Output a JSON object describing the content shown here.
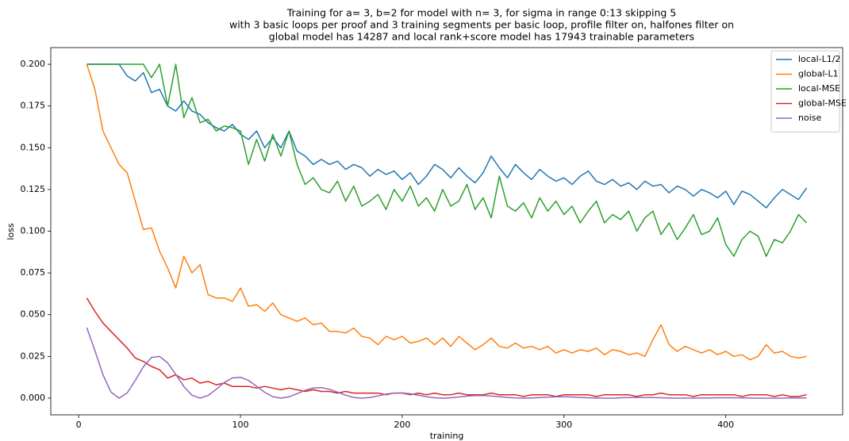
{
  "chart_data": {
    "type": "line",
    "title": [
      "Training for a= 3, b=2 for model with n= 3, for sigma in range 0:13 skipping 5",
      "with 3 basic loops per proof and 3 training segments per basic loop, profile filter on, halfones filter on",
      "global model has 14287 and local rank+score model has 17943 trainable parameters"
    ],
    "xlabel": "training",
    "ylabel": "loss",
    "legend": "upper right",
    "xlim": [
      -17.25,
      472.25
    ],
    "ylim": [
      -0.01,
      0.21
    ],
    "xticks": [
      0,
      100,
      200,
      300,
      400
    ],
    "yticks": [
      {
        "value": 0,
        "label": "0.000"
      },
      {
        "value": 0.025,
        "label": "0.025"
      },
      {
        "value": 0.05,
        "label": "0.050"
      },
      {
        "value": 0.075,
        "label": "0.075"
      },
      {
        "value": 0.1,
        "label": "0.100"
      },
      {
        "value": 0.125,
        "label": "0.125"
      },
      {
        "value": 0.15,
        "label": "0.150"
      },
      {
        "value": 0.175,
        "label": "0.175"
      },
      {
        "value": 0.2,
        "label": "0.200"
      }
    ],
    "x": [
      5,
      10,
      15,
      20,
      25,
      30,
      35,
      40,
      45,
      50,
      55,
      60,
      65,
      70,
      75,
      80,
      85,
      90,
      95,
      100,
      105,
      110,
      115,
      120,
      125,
      130,
      135,
      140,
      145,
      150,
      155,
      160,
      165,
      170,
      175,
      180,
      185,
      190,
      195,
      200,
      205,
      210,
      215,
      220,
      225,
      230,
      235,
      240,
      245,
      250,
      255,
      260,
      265,
      270,
      275,
      280,
      285,
      290,
      295,
      300,
      305,
      310,
      315,
      320,
      325,
      330,
      335,
      340,
      345,
      350,
      355,
      360,
      365,
      370,
      375,
      380,
      385,
      390,
      395,
      400,
      405,
      410,
      415,
      420,
      425,
      430,
      435,
      440,
      445,
      450
    ],
    "series": [
      {
        "name": "local-L1/2",
        "color": "#1f77b4",
        "values": [
          0.2,
          0.2,
          0.2,
          0.2,
          0.2,
          0.193,
          0.19,
          0.195,
          0.183,
          0.185,
          0.175,
          0.172,
          0.178,
          0.172,
          0.17,
          0.165,
          0.162,
          0.16,
          0.164,
          0.158,
          0.155,
          0.16,
          0.15,
          0.156,
          0.15,
          0.16,
          0.148,
          0.145,
          0.14,
          0.143,
          0.14,
          0.142,
          0.137,
          0.14,
          0.138,
          0.133,
          0.137,
          0.134,
          0.136,
          0.131,
          0.135,
          0.128,
          0.133,
          0.14,
          0.137,
          0.132,
          0.138,
          0.133,
          0.129,
          0.135,
          0.145,
          0.138,
          0.132,
          0.14,
          0.135,
          0.131,
          0.137,
          0.133,
          0.13,
          0.132,
          0.128,
          0.133,
          0.136,
          0.13,
          0.128,
          0.131,
          0.127,
          0.129,
          0.125,
          0.13,
          0.127,
          0.128,
          0.123,
          0.127,
          0.125,
          0.121,
          0.125,
          0.123,
          0.12,
          0.124,
          0.116,
          0.124,
          0.122,
          0.118,
          0.114,
          0.12,
          0.125,
          0.122,
          0.119,
          0.126
        ]
      },
      {
        "name": "global-L1",
        "color": "#ff7f0e",
        "values": [
          0.2,
          0.185,
          0.16,
          0.15,
          0.14,
          0.135,
          0.118,
          0.101,
          0.102,
          0.088,
          0.078,
          0.066,
          0.085,
          0.075,
          0.08,
          0.062,
          0.06,
          0.06,
          0.058,
          0.066,
          0.055,
          0.056,
          0.052,
          0.057,
          0.05,
          0.048,
          0.046,
          0.048,
          0.044,
          0.045,
          0.04,
          0.04,
          0.039,
          0.042,
          0.037,
          0.036,
          0.032,
          0.037,
          0.035,
          0.037,
          0.033,
          0.034,
          0.036,
          0.032,
          0.036,
          0.031,
          0.037,
          0.033,
          0.029,
          0.032,
          0.036,
          0.031,
          0.03,
          0.033,
          0.03,
          0.031,
          0.029,
          0.031,
          0.027,
          0.029,
          0.027,
          0.029,
          0.028,
          0.03,
          0.026,
          0.029,
          0.028,
          0.026,
          0.027,
          0.025,
          0.035,
          0.044,
          0.032,
          0.028,
          0.031,
          0.029,
          0.027,
          0.029,
          0.026,
          0.028,
          0.025,
          0.026,
          0.023,
          0.025,
          0.032,
          0.027,
          0.028,
          0.025,
          0.024,
          0.025
        ]
      },
      {
        "name": "local-MSE",
        "color": "#2ca02c",
        "values": [
          0.2,
          0.2,
          0.2,
          0.2,
          0.2,
          0.2,
          0.2,
          0.2,
          0.192,
          0.2,
          0.175,
          0.2,
          0.168,
          0.18,
          0.165,
          0.167,
          0.16,
          0.163,
          0.162,
          0.16,
          0.14,
          0.155,
          0.142,
          0.158,
          0.145,
          0.16,
          0.14,
          0.128,
          0.132,
          0.125,
          0.123,
          0.13,
          0.118,
          0.127,
          0.115,
          0.118,
          0.122,
          0.113,
          0.125,
          0.118,
          0.127,
          0.115,
          0.12,
          0.112,
          0.125,
          0.115,
          0.118,
          0.128,
          0.113,
          0.12,
          0.108,
          0.133,
          0.115,
          0.112,
          0.117,
          0.108,
          0.12,
          0.112,
          0.118,
          0.11,
          0.115,
          0.105,
          0.112,
          0.118,
          0.105,
          0.11,
          0.107,
          0.112,
          0.1,
          0.108,
          0.112,
          0.098,
          0.105,
          0.095,
          0.102,
          0.11,
          0.098,
          0.1,
          0.108,
          0.092,
          0.085,
          0.095,
          0.1,
          0.097,
          0.085,
          0.095,
          0.093,
          0.1,
          0.11,
          0.105
        ]
      },
      {
        "name": "global-MSE",
        "color": "#d62728",
        "values": [
          0.06,
          0.052,
          0.045,
          0.04,
          0.035,
          0.03,
          0.024,
          0.022,
          0.019,
          0.017,
          0.012,
          0.014,
          0.011,
          0.012,
          0.009,
          0.01,
          0.008,
          0.009,
          0.007,
          0.007,
          0.007,
          0.006,
          0.007,
          0.006,
          0.005,
          0.006,
          0.005,
          0.004,
          0.005,
          0.004,
          0.004,
          0.003,
          0.004,
          0.003,
          0.003,
          0.003,
          0.003,
          0.002,
          0.003,
          0.003,
          0.002,
          0.003,
          0.002,
          0.003,
          0.002,
          0.002,
          0.003,
          0.002,
          0.002,
          0.002,
          0.003,
          0.002,
          0.002,
          0.002,
          0.001,
          0.002,
          0.002,
          0.002,
          0.001,
          0.002,
          0.002,
          0.002,
          0.002,
          0.001,
          0.002,
          0.002,
          0.002,
          0.002,
          0.001,
          0.002,
          0.002,
          0.003,
          0.002,
          0.002,
          0.002,
          0.001,
          0.002,
          0.002,
          0.002,
          0.002,
          0.002,
          0.001,
          0.002,
          0.002,
          0.002,
          0.001,
          0.002,
          0.001,
          0.001,
          0.002
        ]
      },
      {
        "name": "noise",
        "color": "#9467bd",
        "values": [
          0.0422,
          0.0285,
          0.014,
          0.0036,
          0,
          0.0031,
          0.0106,
          0.0188,
          0.0243,
          0.025,
          0.0211,
          0.0143,
          0.007,
          0.0018,
          0,
          0.0016,
          0.0053,
          0.0094,
          0.0121,
          0.0125,
          0.0106,
          0.0071,
          0.0035,
          0.0009,
          0,
          0.0008,
          0.0027,
          0.0047,
          0.0061,
          0.0063,
          0.0053,
          0.0036,
          0.0018,
          0.0004,
          0,
          0.0004,
          0.0013,
          0.0024,
          0.003,
          0.0031,
          0.0026,
          0.0018,
          0.0009,
          0.0002,
          0,
          0.0002,
          0.0007,
          0.0012,
          0.0015,
          0.0016,
          0.0013,
          0.0009,
          0.0004,
          0.0001,
          0,
          0.0001,
          0.0003,
          0.0006,
          0.0008,
          0.0008,
          0.0007,
          0.0004,
          0.0002,
          0.0001,
          0,
          0,
          0.0002,
          0.0003,
          0.0004,
          0.0004,
          0.0003,
          0.0002,
          0.0001,
          0,
          0,
          0,
          0.0001,
          0.0001,
          0.0002,
          0.0002,
          0.0002,
          0.0001,
          0.0001,
          0,
          0,
          0,
          0,
          0.0001,
          0.0001,
          0.0001
        ]
      }
    ]
  }
}
